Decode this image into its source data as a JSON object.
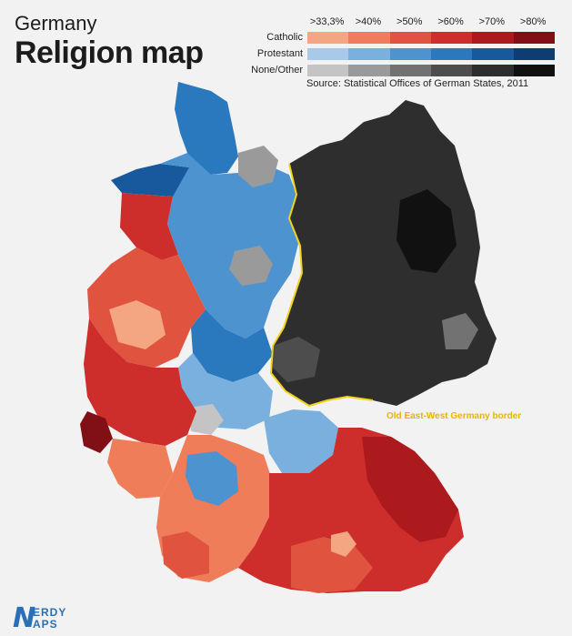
{
  "header": {
    "subtitle": "Germany",
    "title": "Religion map"
  },
  "legend": {
    "thresholds": [
      ">33,3%",
      ">40%",
      ">50%",
      ">60%",
      ">70%",
      ">80%"
    ],
    "rows": [
      {
        "label": "Catholic",
        "colors": [
          "#f4a582",
          "#ef7d5a",
          "#e0533f",
          "#cd2d2b",
          "#ad1a1e",
          "#800f16"
        ]
      },
      {
        "label": "Protestant",
        "colors": [
          "#a9c9e8",
          "#7ab0dd",
          "#4d93cf",
          "#2a78bd",
          "#17599c",
          "#0d3d73"
        ]
      },
      {
        "label": "None/Other",
        "colors": [
          "#c4c4c4",
          "#9a9a9a",
          "#727272",
          "#4d4d4d",
          "#2e2e2e",
          "#111111"
        ]
      }
    ],
    "source": "Source: Statistical Offices of German States, 2011"
  },
  "map": {
    "border_label": "Old East-West Germany border",
    "border_color": "#f2d21b"
  },
  "branding": {
    "logo_line1": "ERDY",
    "logo_line2": "APS"
  }
}
